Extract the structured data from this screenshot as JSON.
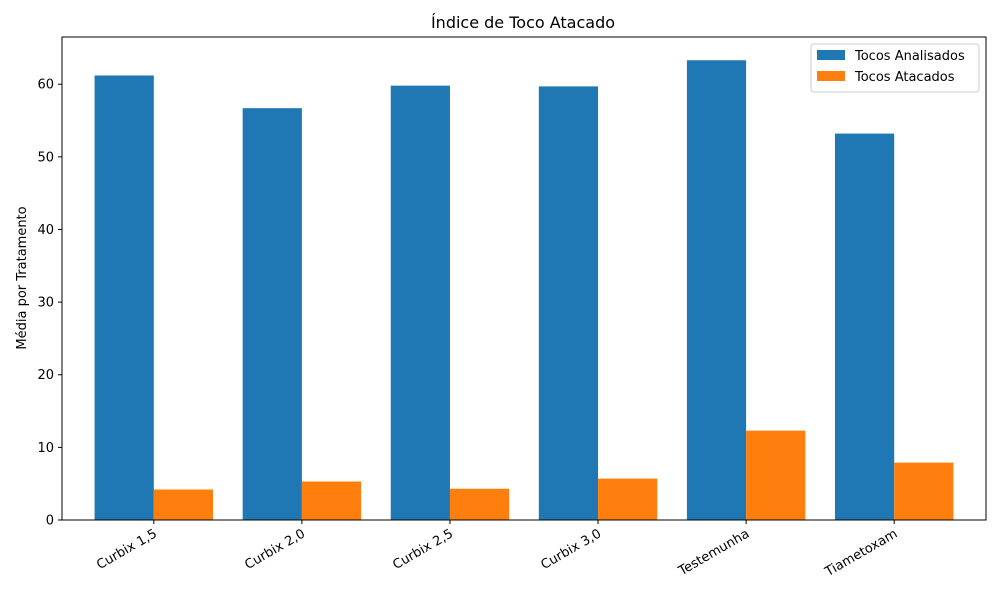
{
  "chart_data": {
    "type": "bar",
    "title": "Índice de Toco Atacado",
    "xlabel": "",
    "ylabel": "Média por Tratamento",
    "ylim": [
      0,
      66.5
    ],
    "yticks": [
      0,
      10,
      20,
      30,
      40,
      50,
      60
    ],
    "categories": [
      "Curbix 1,5",
      "Curbix 2,0",
      "Curbix 2,5",
      "Curbix 3,0",
      "Testemunha",
      "Tiametoxam"
    ],
    "series": [
      {
        "name": "Tocos Analisados",
        "color": "#1f77b4",
        "values": [
          61.2,
          56.7,
          59.8,
          59.7,
          63.3,
          53.2
        ]
      },
      {
        "name": "Tocos Atacados",
        "color": "#ff7f0e",
        "values": [
          4.2,
          5.3,
          4.3,
          5.7,
          12.3,
          7.9
        ]
      }
    ],
    "legend_position": "top-right",
    "grid": false
  }
}
